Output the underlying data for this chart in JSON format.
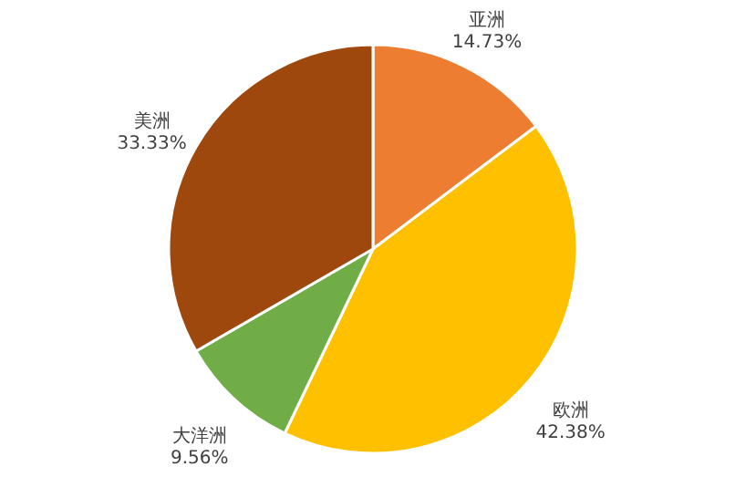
{
  "chart_data": {
    "type": "pie",
    "categories": [
      "亚洲",
      "欧洲",
      "大洋洲",
      "美洲"
    ],
    "values": [
      14.73,
      42.38,
      9.56,
      33.33
    ],
    "value_labels": [
      "14.73%",
      "42.38%",
      "9.56%",
      "33.33%"
    ],
    "colors": [
      "#ed7d31",
      "#ffc000",
      "#70ad47",
      "#9e480e"
    ],
    "legend": false
  }
}
